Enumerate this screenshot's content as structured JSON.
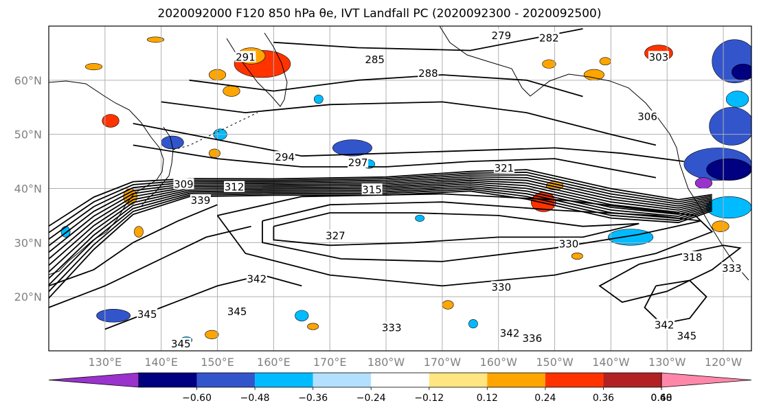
{
  "title": "2020092000 F120 850 hPa θe, IVT Landfall PC (2020092300 - 2020092500)",
  "map": {
    "lon_range": [
      120,
      245
    ],
    "lat_range": [
      10,
      70
    ],
    "lat_ticks": [
      {
        "value": 20,
        "label": "20°N"
      },
      {
        "value": 30,
        "label": "30°N"
      },
      {
        "value": 40,
        "label": "40°N"
      },
      {
        "value": 50,
        "label": "50°N"
      },
      {
        "value": 60,
        "label": "60°N"
      }
    ],
    "lon_ticks": [
      {
        "value": 130,
        "label": "130°E"
      },
      {
        "value": 140,
        "label": "140°E"
      },
      {
        "value": 150,
        "label": "150°E"
      },
      {
        "value": 160,
        "label": "160°E"
      },
      {
        "value": 170,
        "label": "170°E"
      },
      {
        "value": 180,
        "label": "180°W"
      },
      {
        "value": 190,
        "label": "170°W"
      },
      {
        "value": 200,
        "label": "160°W"
      },
      {
        "value": 210,
        "label": "150°W"
      },
      {
        "value": 220,
        "label": "140°W"
      },
      {
        "value": 230,
        "label": "130°W"
      },
      {
        "value": 240,
        "label": "120°W"
      }
    ],
    "contour_labels": [
      {
        "text": "279",
        "lon": 200.5,
        "lat": 68
      },
      {
        "text": "282",
        "lon": 209,
        "lat": 67.5
      },
      {
        "text": "291",
        "lon": 155,
        "lat": 64
      },
      {
        "text": "285",
        "lon": 178,
        "lat": 63.5
      },
      {
        "text": "288",
        "lon": 187.5,
        "lat": 61
      },
      {
        "text": "303",
        "lon": 228.5,
        "lat": 64
      },
      {
        "text": "306",
        "lon": 226.5,
        "lat": 53
      },
      {
        "text": "294",
        "lon": 162,
        "lat": 45.5
      },
      {
        "text": "297",
        "lon": 175,
        "lat": 44.5
      },
      {
        "text": "321",
        "lon": 201,
        "lat": 43.5
      },
      {
        "text": "309",
        "lon": 144,
        "lat": 40.5
      },
      {
        "text": "312",
        "lon": 153,
        "lat": 40
      },
      {
        "text": "315",
        "lon": 177.5,
        "lat": 39.5
      },
      {
        "text": "339",
        "lon": 147,
        "lat": 37.5
      },
      {
        "text": "327",
        "lon": 171,
        "lat": 31
      },
      {
        "text": "330",
        "lon": 212.5,
        "lat": 29.5
      },
      {
        "text": "318",
        "lon": 234.5,
        "lat": 27
      },
      {
        "text": "333",
        "lon": 241.5,
        "lat": 25
      },
      {
        "text": "342",
        "lon": 157,
        "lat": 23
      },
      {
        "text": "330",
        "lon": 200.5,
        "lat": 21.5
      },
      {
        "text": "345",
        "lon": 137.5,
        "lat": 16.5
      },
      {
        "text": "345",
        "lon": 153.5,
        "lat": 17
      },
      {
        "text": "345",
        "lon": 143.5,
        "lat": 11
      },
      {
        "text": "333",
        "lon": 181,
        "lat": 14
      },
      {
        "text": "342",
        "lon": 202,
        "lat": 13
      },
      {
        "text": "336",
        "lon": 206,
        "lat": 12
      },
      {
        "text": "342",
        "lon": 229.5,
        "lat": 14.5
      },
      {
        "text": "345",
        "lon": 233.5,
        "lat": 12.5
      }
    ]
  },
  "colorbar": {
    "colors": [
      "#9933cc",
      "#000080",
      "#3355cc",
      "#00bbff",
      "#b3e0ff",
      "#ffffff",
      "#ffe680",
      "#ffa500",
      "#ff3300",
      "#b22222",
      "#ff88aa"
    ],
    "tick_labels": [
      "−0.60",
      "−0.48",
      "−0.36",
      "−0.24",
      "−0.12",
      "0.12",
      "0.24",
      "0.36",
      "0.48",
      "0.60"
    ]
  },
  "fill_colors": {
    "warm1": "#ffe680",
    "warm2": "#ffa500",
    "warm3": "#ff3300",
    "cool1": "#b3e0ff",
    "cool2": "#00bbff",
    "cool3": "#3355cc",
    "cool4": "#000080",
    "cool5": "#9933cc"
  },
  "anomaly_patches": [
    {
      "lon": 158,
      "lat": 63,
      "rx": 5,
      "ry": 2.5,
      "tone": "warm3"
    },
    {
      "lon": 156,
      "lat": 64.5,
      "rx": 2.5,
      "ry": 1.5,
      "tone": "warm2"
    },
    {
      "lon": 150,
      "lat": 61,
      "rx": 1.5,
      "ry": 1,
      "tone": "warm2"
    },
    {
      "lon": 152.5,
      "lat": 58,
      "rx": 1.5,
      "ry": 1,
      "tone": "warm2"
    },
    {
      "lon": 128,
      "lat": 62.5,
      "rx": 1.5,
      "ry": 0.6,
      "tone": "warm2"
    },
    {
      "lon": 131,
      "lat": 52.5,
      "rx": 1.5,
      "ry": 1.2,
      "tone": "warm3"
    },
    {
      "lon": 139,
      "lat": 67.5,
      "rx": 1.5,
      "ry": 0.5,
      "tone": "warm2"
    },
    {
      "lon": 228.5,
      "lat": 65,
      "rx": 2.5,
      "ry": 1.5,
      "tone": "warm3"
    },
    {
      "lon": 219,
      "lat": 63.5,
      "rx": 1,
      "ry": 0.7,
      "tone": "warm2"
    },
    {
      "lon": 217,
      "lat": 61,
      "rx": 1.8,
      "ry": 1,
      "tone": "warm2"
    },
    {
      "lon": 209,
      "lat": 63,
      "rx": 1.2,
      "ry": 0.8,
      "tone": "warm2"
    },
    {
      "lon": 208,
      "lat": 37.5,
      "rx": 2.2,
      "ry": 1.8,
      "tone": "warm3"
    },
    {
      "lon": 210,
      "lat": 40.5,
      "rx": 1.5,
      "ry": 0.8,
      "tone": "warm2"
    },
    {
      "lon": 149.5,
      "lat": 46.5,
      "rx": 1,
      "ry": 0.8,
      "tone": "warm2"
    },
    {
      "lon": 134.5,
      "lat": 38.5,
      "rx": 1.2,
      "ry": 1.5,
      "tone": "warm2"
    },
    {
      "lon": 136,
      "lat": 32,
      "rx": 0.8,
      "ry": 1,
      "tone": "warm2"
    },
    {
      "lon": 240.5,
      "lat": 37,
      "rx": 1,
      "ry": 1,
      "tone": "warm3"
    },
    {
      "lon": 239.5,
      "lat": 33,
      "rx": 1.5,
      "ry": 1,
      "tone": "warm2"
    },
    {
      "lon": 167,
      "lat": 14.5,
      "rx": 1,
      "ry": 0.6,
      "tone": "warm2"
    },
    {
      "lon": 149,
      "lat": 13,
      "rx": 1.2,
      "ry": 0.8,
      "tone": "warm2"
    },
    {
      "lon": 214,
      "lat": 27.5,
      "rx": 1,
      "ry": 0.6,
      "tone": "warm2"
    },
    {
      "lon": 191,
      "lat": 18.5,
      "rx": 1,
      "ry": 0.8,
      "tone": "warm2"
    },
    {
      "lon": 142,
      "lat": 48.5,
      "rx": 2,
      "ry": 1.2,
      "tone": "cool3"
    },
    {
      "lon": 150.5,
      "lat": 50,
      "rx": 1.2,
      "ry": 1,
      "tone": "cool2"
    },
    {
      "lon": 174,
      "lat": 47.5,
      "rx": 3.5,
      "ry": 1.5,
      "tone": "cool3"
    },
    {
      "lon": 177,
      "lat": 44.5,
      "rx": 1,
      "ry": 0.8,
      "tone": "cool2"
    },
    {
      "lon": 242,
      "lat": 63.5,
      "rx": 4,
      "ry": 4,
      "tone": "cool3"
    },
    {
      "lon": 243.5,
      "lat": 61.5,
      "rx": 2,
      "ry": 1.5,
      "tone": "cool4"
    },
    {
      "lon": 241.5,
      "lat": 51.5,
      "rx": 4,
      "ry": 3.5,
      "tone": "cool3"
    },
    {
      "lon": 239,
      "lat": 44.5,
      "rx": 6,
      "ry": 3,
      "tone": "cool3"
    },
    {
      "lon": 241,
      "lat": 43.5,
      "rx": 4,
      "ry": 2,
      "tone": "cool4"
    },
    {
      "lon": 236.5,
      "lat": 41,
      "rx": 1.5,
      "ry": 1,
      "tone": "cool5"
    },
    {
      "lon": 241,
      "lat": 36.5,
      "rx": 4,
      "ry": 2,
      "tone": "cool2"
    },
    {
      "lon": 223.5,
      "lat": 31,
      "rx": 4,
      "ry": 1.5,
      "tone": "cool2"
    },
    {
      "lon": 131.5,
      "lat": 16.5,
      "rx": 3,
      "ry": 1.2,
      "tone": "cool3"
    },
    {
      "lon": 165,
      "lat": 16.5,
      "rx": 1.2,
      "ry": 1,
      "tone": "cool2"
    },
    {
      "lon": 186,
      "lat": 34.5,
      "rx": 0.8,
      "ry": 0.6,
      "tone": "cool2"
    },
    {
      "lon": 195.5,
      "lat": 15,
      "rx": 0.8,
      "ry": 0.8,
      "tone": "cool2"
    },
    {
      "lon": 168,
      "lat": 56.5,
      "rx": 0.8,
      "ry": 0.8,
      "tone": "cool2"
    },
    {
      "lon": 242.5,
      "lat": 56.5,
      "rx": 2,
      "ry": 1.5,
      "tone": "cool2"
    },
    {
      "lon": 123,
      "lat": 32,
      "rx": 0.8,
      "ry": 1,
      "tone": "cool2"
    },
    {
      "lon": 144.5,
      "lat": 12,
      "rx": 1,
      "ry": 0.6,
      "tone": "cool2"
    }
  ]
}
